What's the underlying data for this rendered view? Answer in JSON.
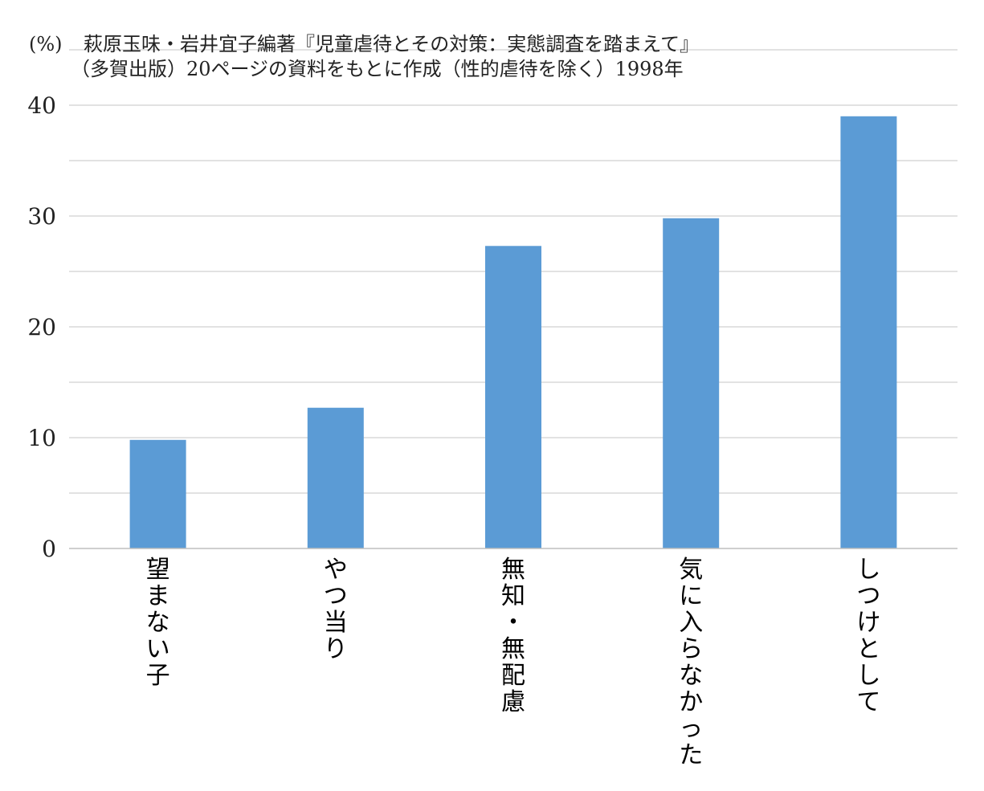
{
  "header": {
    "unit": "(%)",
    "source_line1": "萩原玉味・岩井宜子編著『児童虐待とその対策：実態調査を踏まえて』",
    "source_line2": "（多賀出版）20ページの資料をもとに作成（性的虐待を除く）1998年"
  },
  "chart_data": {
    "type": "bar",
    "title": "",
    "xlabel": "",
    "ylabel": "(%)",
    "categories": [
      "望まない子",
      "やつ当り",
      "無知・無配慮",
      "気に入らなかった",
      "しつけとして"
    ],
    "values": [
      9.8,
      12.7,
      27.3,
      29.8,
      39.0
    ],
    "ylim": [
      0,
      40
    ],
    "yticks": [
      0,
      10,
      20,
      30,
      40
    ],
    "minor_gridlines": [
      5,
      15,
      25,
      35,
      45
    ],
    "grid": true,
    "legend": "none",
    "bar_color": "#5b9bd5",
    "grid_color": "#d9d9d9"
  }
}
